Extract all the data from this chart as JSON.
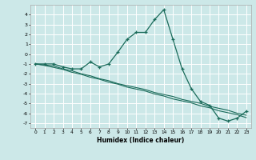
{
  "xlabel": "Humidex (Indice chaleur)",
  "ylabel": "",
  "background_color": "#cce8e8",
  "grid_color": "#ffffff",
  "line_color": "#1a6b5a",
  "x_data": [
    0,
    1,
    2,
    3,
    4,
    5,
    6,
    7,
    8,
    9,
    10,
    11,
    12,
    13,
    14,
    15,
    16,
    17,
    18,
    19,
    20,
    21,
    22,
    23
  ],
  "curve_y": [
    -1.0,
    -1.0,
    -1.0,
    -1.3,
    -1.5,
    -1.5,
    -0.8,
    -1.3,
    -1.0,
    0.2,
    1.5,
    2.2,
    2.2,
    3.5,
    4.5,
    1.5,
    -1.5,
    -3.5,
    -4.8,
    -5.2,
    -6.5,
    -6.8,
    -6.5,
    -5.8
  ],
  "line1_y": [
    -1.0,
    -1.1,
    -1.2,
    -1.5,
    -1.7,
    -2.0,
    -2.2,
    -2.5,
    -2.7,
    -3.0,
    -3.2,
    -3.4,
    -3.6,
    -3.9,
    -4.1,
    -4.3,
    -4.6,
    -4.8,
    -5.0,
    -5.3,
    -5.5,
    -5.7,
    -6.0,
    -6.2
  ],
  "line2_y": [
    -1.0,
    -1.15,
    -1.35,
    -1.55,
    -1.85,
    -2.05,
    -2.35,
    -2.55,
    -2.85,
    -3.05,
    -3.35,
    -3.55,
    -3.75,
    -4.05,
    -4.25,
    -4.55,
    -4.75,
    -4.95,
    -5.25,
    -5.45,
    -5.75,
    -5.95,
    -6.15,
    -6.45
  ],
  "ylim": [
    -7.5,
    5.0
  ],
  "xlim": [
    -0.5,
    23.5
  ],
  "yticks": [
    -7,
    -6,
    -5,
    -4,
    -3,
    -2,
    -1,
    0,
    1,
    2,
    3,
    4
  ],
  "xticks": [
    0,
    1,
    2,
    3,
    4,
    5,
    6,
    7,
    8,
    9,
    10,
    11,
    12,
    13,
    14,
    15,
    16,
    17,
    18,
    19,
    20,
    21,
    22,
    23
  ]
}
